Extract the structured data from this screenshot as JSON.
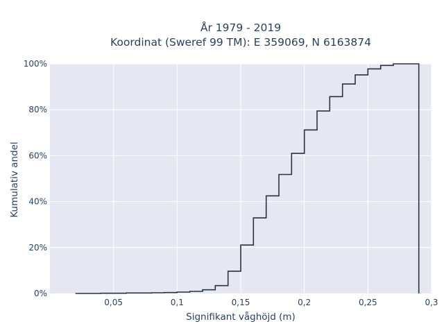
{
  "chart_data": {
    "type": "step",
    "title_line1": "År 1979 - 2019",
    "title_line2": "Koordinat (Sweref 99 TM): E 359069, N 6163874",
    "xlabel": "Signifikant våghöjd (m)",
    "ylabel": "Kumulativ andel",
    "xlim": [
      0.0,
      0.3
    ],
    "ylim": [
      0,
      1.0
    ],
    "x_ticks": [
      0.05,
      0.1,
      0.15,
      0.2,
      0.25,
      0.3
    ],
    "x_tick_labels": [
      "0,05",
      "0,1",
      "0,15",
      "0,2",
      "0,25",
      "0,3"
    ],
    "y_ticks": [
      0,
      0.2,
      0.4,
      0.6,
      0.8,
      1.0
    ],
    "y_tick_labels": [
      "0%",
      "20%",
      "40%",
      "60%",
      "80%",
      "100%"
    ],
    "grid": true,
    "plot_background": "#e5e8f2",
    "line_color": "#2a3142",
    "bins": [
      0.02,
      0.03,
      0.04,
      0.05,
      0.06,
      0.07,
      0.08,
      0.09,
      0.1,
      0.11,
      0.12,
      0.13,
      0.14,
      0.15,
      0.16,
      0.17,
      0.18,
      0.19,
      0.2,
      0.21,
      0.22,
      0.23,
      0.24,
      0.25,
      0.26,
      0.27,
      0.28,
      0.29
    ],
    "cumulative": [
      0.0,
      0.0,
      0.001,
      0.001,
      0.002,
      0.002,
      0.003,
      0.004,
      0.006,
      0.009,
      0.016,
      0.034,
      0.097,
      0.211,
      0.329,
      0.425,
      0.518,
      0.61,
      0.712,
      0.795,
      0.857,
      0.912,
      0.952,
      0.978,
      0.993,
      1.0,
      1.0
    ],
    "end_x": 0.29
  }
}
